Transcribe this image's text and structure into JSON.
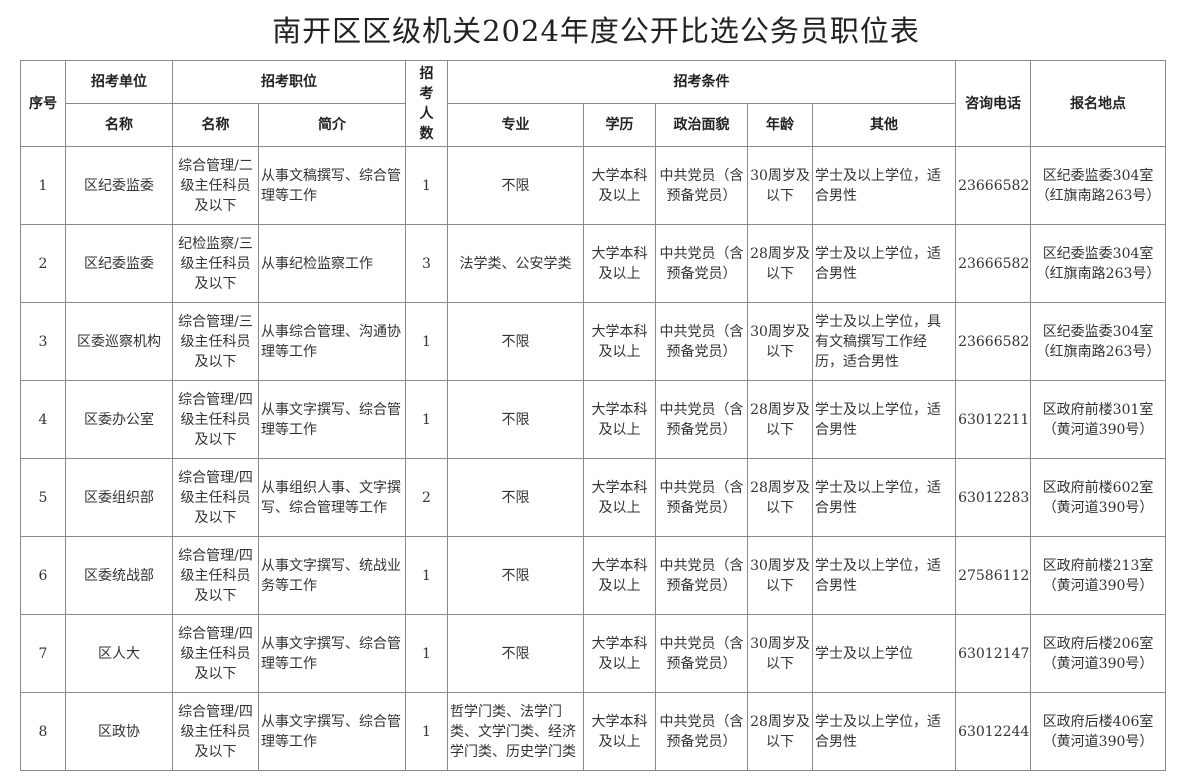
{
  "title": "南开区区级机关2024年度公开比选公务员职位表",
  "headers": {
    "seq": "序号",
    "unit": "招考单位",
    "position": "招考职位",
    "count": "招考人数",
    "conditions": "招考条件",
    "phone": "咨询电话",
    "location": "报名地点",
    "unit_name": "名称",
    "position_name": "名称",
    "position_desc": "简介",
    "major": "专业",
    "education": "学历",
    "political": "政治面貌",
    "age": "年龄",
    "other": "其他"
  },
  "rows": [
    {
      "seq": "1",
      "unit": "区纪委监委",
      "position": "综合管理/二级主任科员及以下",
      "desc": "从事文稿撰写、综合管理等工作",
      "count": "1",
      "major": "不限",
      "education": "大学本科及以上",
      "political": "中共党员（含预备党员）",
      "age": "30周岁及以下",
      "other": "学士及以上学位，适合男性",
      "phone": "23666582",
      "location": "区纪委监委304室（红旗南路263号）"
    },
    {
      "seq": "2",
      "unit": "区纪委监委",
      "position": "纪检监察/三级主任科员及以下",
      "desc": "从事纪检监察工作",
      "count": "3",
      "major": "法学类、公安学类",
      "education": "大学本科及以上",
      "political": "中共党员（含预备党员）",
      "age": "28周岁及以下",
      "other": "学士及以上学位，适合男性",
      "phone": "23666582",
      "location": "区纪委监委304室（红旗南路263号）"
    },
    {
      "seq": "3",
      "unit": "区委巡察机构",
      "position": "综合管理/三级主任科员及以下",
      "desc": "从事综合管理、沟通协理等工作",
      "count": "1",
      "major": "不限",
      "education": "大学本科及以上",
      "political": "中共党员（含预备党员）",
      "age": "30周岁及以下",
      "other": "学士及以上学位，具有文稿撰写工作经历，适合男性",
      "phone": "23666582",
      "location": "区纪委监委304室（红旗南路263号）"
    },
    {
      "seq": "4",
      "unit": "区委办公室",
      "position": "综合管理/四级主任科员及以下",
      "desc": "从事文字撰写、综合管理等工作",
      "count": "1",
      "major": "不限",
      "education": "大学本科及以上",
      "political": "中共党员（含预备党员）",
      "age": "28周岁及以下",
      "other": "学士及以上学位，适合男性",
      "phone": "63012211",
      "location": "区政府前楼301室（黄河道390号）"
    },
    {
      "seq": "5",
      "unit": "区委组织部",
      "position": "综合管理/四级主任科员及以下",
      "desc": "从事组织人事、文字撰写、综合管理等工作",
      "count": "2",
      "major": "不限",
      "education": "大学本科及以上",
      "political": "中共党员（含预备党员）",
      "age": "28周岁及以下",
      "other": "学士及以上学位，适合男性",
      "phone": "63012283",
      "location": "区政府前楼602室（黄河道390号）"
    },
    {
      "seq": "6",
      "unit": "区委统战部",
      "position": "综合管理/四级主任科员及以下",
      "desc": "从事文字撰写、统战业务等工作",
      "count": "1",
      "major": "不限",
      "education": "大学本科及以上",
      "political": "中共党员（含预备党员）",
      "age": "30周岁及以下",
      "other": "学士及以上学位，适合男性",
      "phone": "27586112",
      "location": "区政府前楼213室（黄河道390号）"
    },
    {
      "seq": "7",
      "unit": "区人大",
      "position": "综合管理/四级主任科员及以下",
      "desc": "从事文字撰写、综合管理等工作",
      "count": "1",
      "major": "不限",
      "education": "大学本科及以上",
      "political": "中共党员（含预备党员）",
      "age": "30周岁及以下",
      "other": "学士及以上学位",
      "phone": "63012147",
      "location": "区政府后楼206室（黄河道390号）"
    },
    {
      "seq": "8",
      "unit": "区政协",
      "position": "综合管理/四级主任科员及以下",
      "desc": "从事文字撰写、综合管理等工作",
      "count": "1",
      "major": "哲学门类、法学门类、文学门类、经济学门类、历史学门类",
      "education": "大学本科及以上",
      "political": "中共党员（含预备党员）",
      "age": "28周岁及以下",
      "other": "学士及以上学位，适合男性",
      "phone": "63012244",
      "location": "区政府后楼406室（黄河道390号）"
    }
  ]
}
